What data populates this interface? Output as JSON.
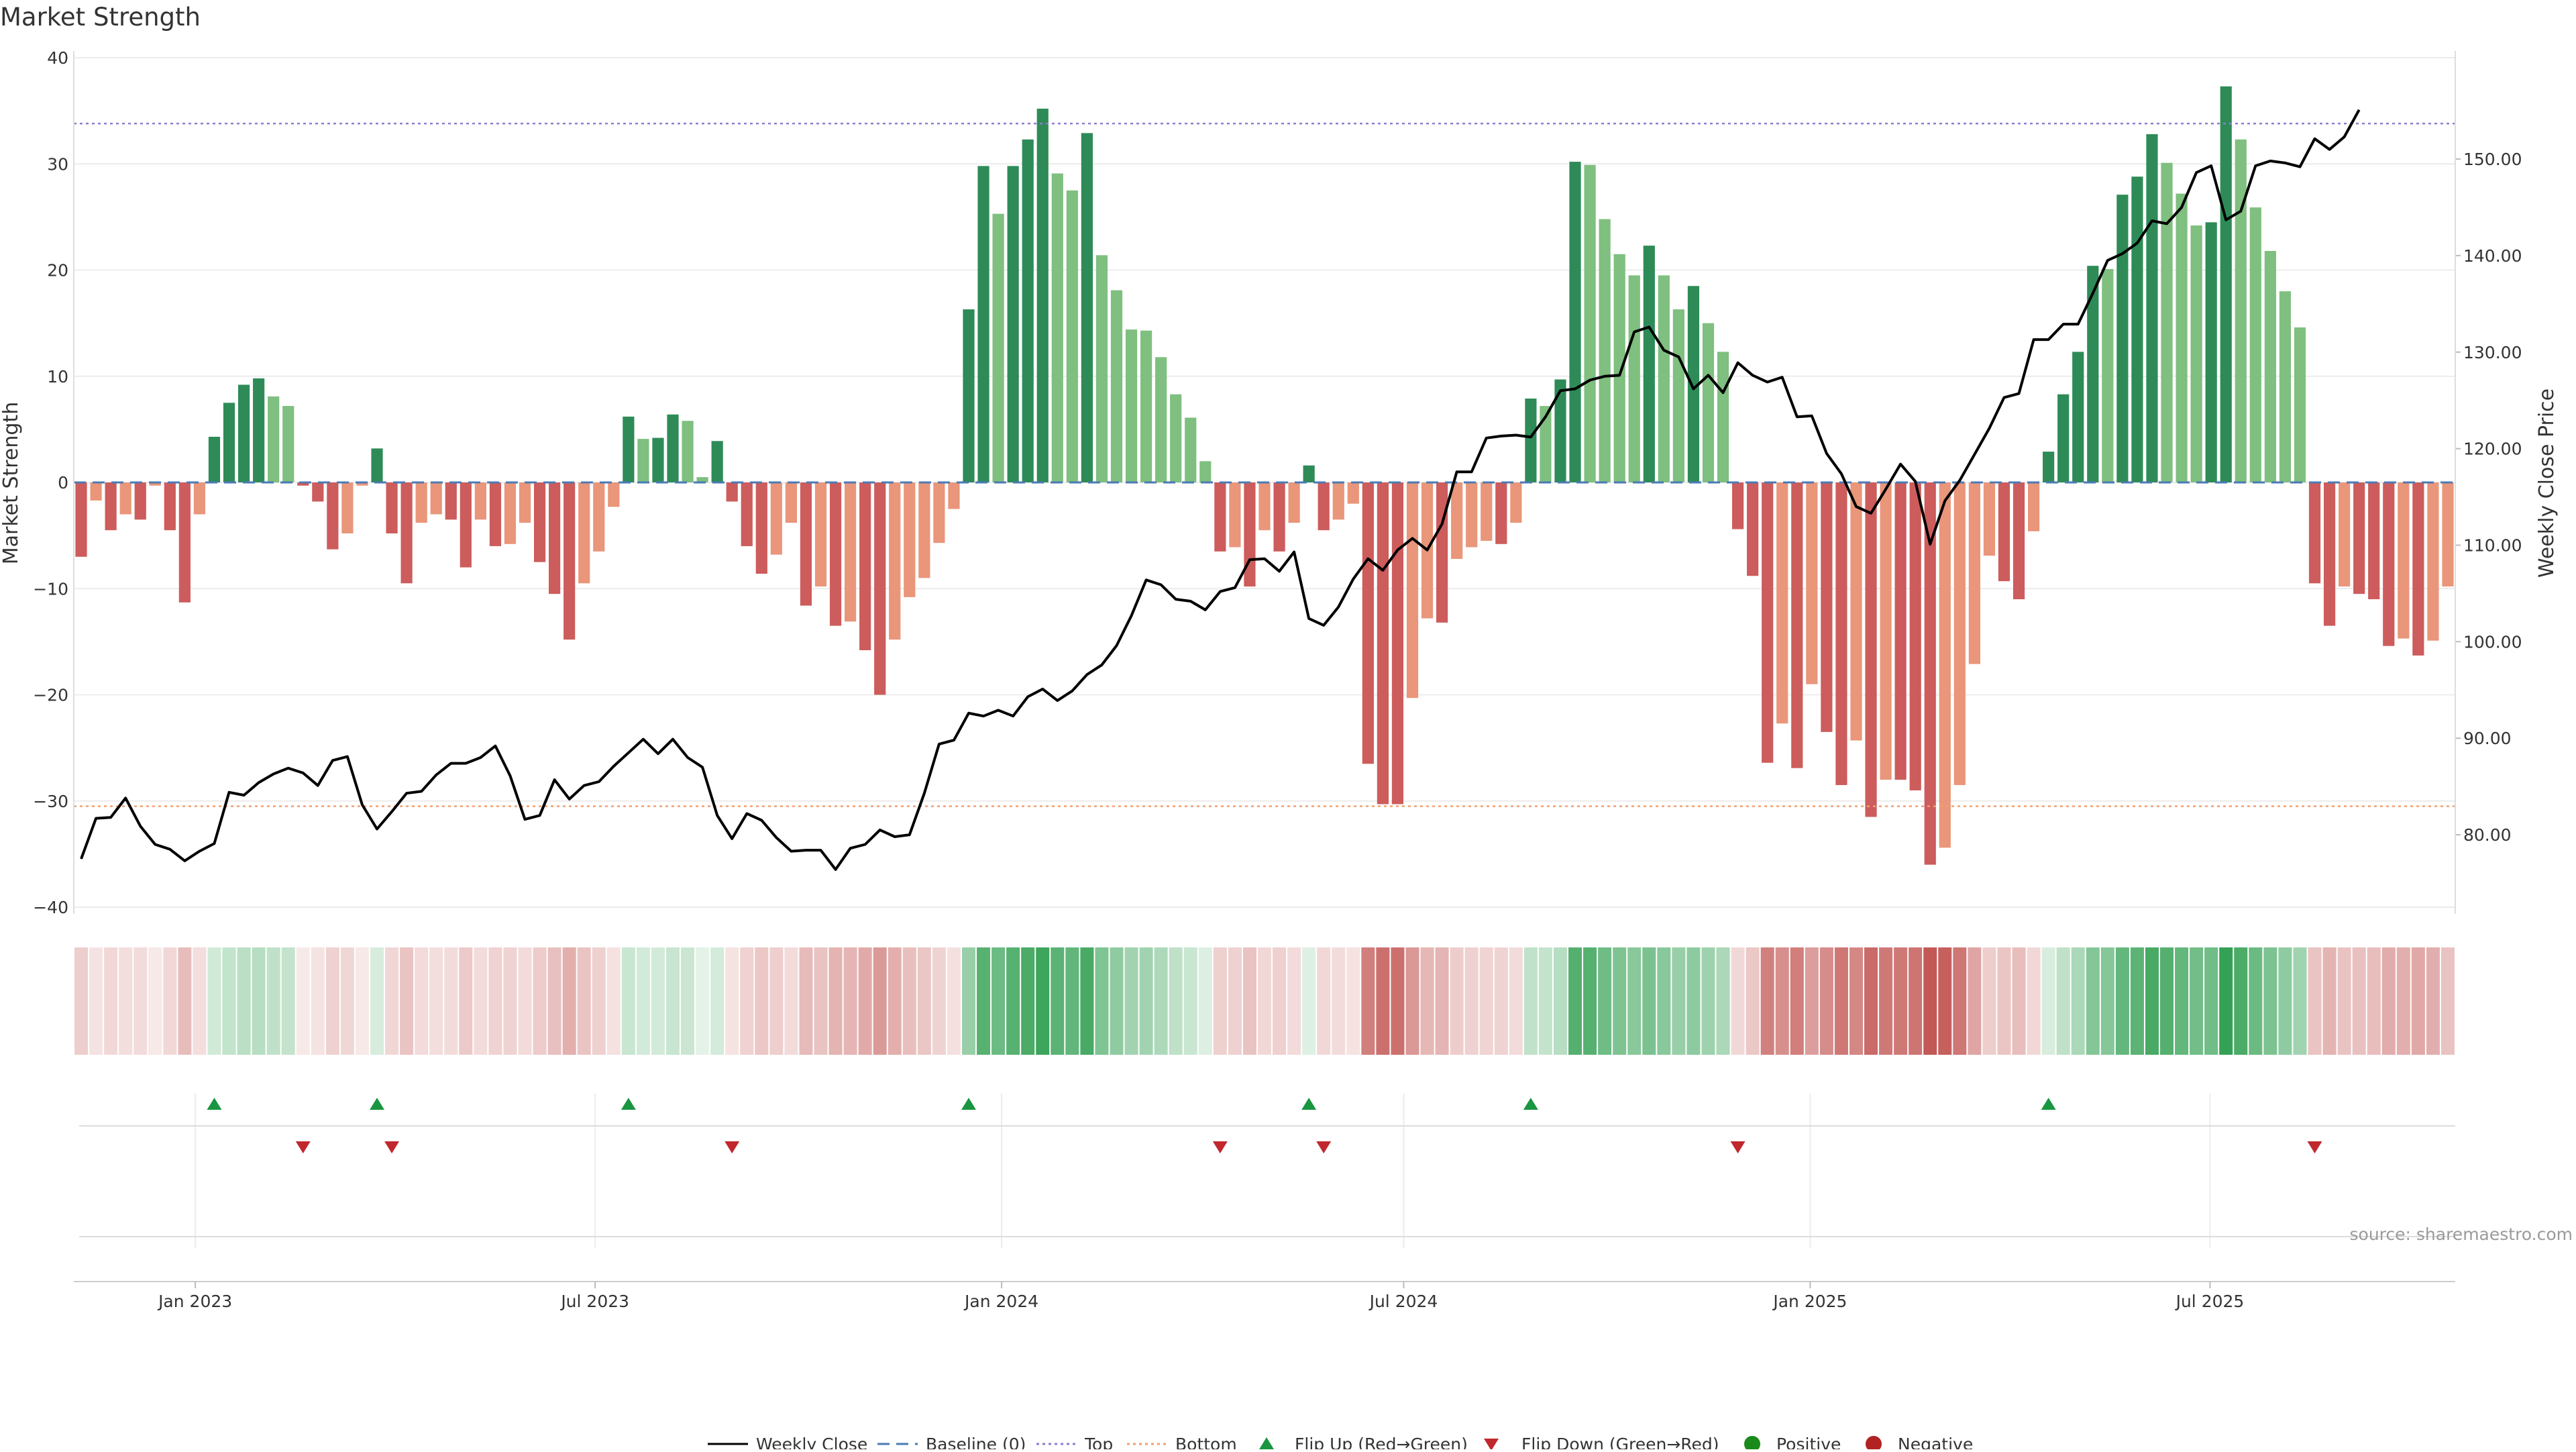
{
  "title": "Market Strength",
  "source": "source: sharemaestro.com",
  "chart_data": {
    "type": "bar",
    "title": "Market Strength",
    "ylabel_left": "Market Strength",
    "ylabel_right": "Weekly Close Price",
    "ylim_left": [
      -40,
      40
    ],
    "ylim_right": [
      72.5,
      160.5
    ],
    "left_ticks": [
      "40",
      "30",
      "20",
      "10",
      "0",
      "−10",
      "−20",
      "−30",
      "−40"
    ],
    "left_tick_values": [
      40,
      30,
      20,
      10,
      0,
      -10,
      -20,
      -30,
      -40
    ],
    "right_ticks": [
      "150.00",
      "140.00",
      "130.00",
      "120.00",
      "110.00",
      "100.00",
      "90.00",
      "80.00"
    ],
    "right_tick_values": [
      150,
      140,
      130,
      120,
      110,
      100,
      90,
      80
    ],
    "x_start": "2022-11-07",
    "x_end": "2025-10-20",
    "x_ticks": [
      "Jan 2023",
      "Jul 2023",
      "Jan 2024",
      "Jul 2024",
      "Jan 2025",
      "Jul 2025"
    ],
    "x_tick_dates": [
      "2023-01-01",
      "2023-07-01",
      "2024-01-01",
      "2024-07-01",
      "2025-01-01",
      "2025-07-01"
    ],
    "top_line": 33.8,
    "bottom_line": -30.5,
    "grid": true,
    "legend_position": "bottom-center",
    "colors": {
      "weekly_close": "#000000",
      "baseline": "#4a7ab5",
      "top": "#8a7fd0",
      "bottom": "#f0a070",
      "green_dark": "#2e8b57",
      "green_light": "#7fbf7f",
      "red_dark": "#cd5c5c",
      "red_light": "#e9967a",
      "flip_up": "#1a9641",
      "flip_down": "#c0282d",
      "positive": "#1a8a1a",
      "negative": "#b22222"
    },
    "strength": [
      -7,
      -1.7,
      -4.5,
      -3,
      -3.5,
      -0.3,
      -4.5,
      -11.3,
      -3,
      4.3,
      7.5,
      9.2,
      9.8,
      8.1,
      7.2,
      -0.3,
      -1.8,
      -6.3,
      -4.8,
      -0.3,
      3.2,
      -4.8,
      -9.5,
      -3.8,
      -3.0,
      -3.5,
      -8,
      -3.5,
      -6,
      -5.8,
      -3.8,
      -7.5,
      -10.5,
      -14.8,
      -9.5,
      -6.5,
      -2.3,
      6.2,
      4.1,
      4.2,
      6.4,
      5.8,
      0.5,
      3.9,
      -1.8,
      -6,
      -8.6,
      -6.8,
      -3.8,
      -11.6,
      -9.8,
      -13.5,
      -13.1,
      -15.8,
      -20,
      -14.8,
      -10.8,
      -9.0,
      -5.7,
      -2.5,
      16.3,
      29.8,
      25.3,
      29.8,
      32.3,
      35.2,
      29.1,
      27.5,
      32.9,
      21.4,
      18.1,
      14.4,
      14.3,
      11.8,
      8.3,
      6.1,
      2.0,
      -6.5,
      -6.1,
      -9.8,
      -4.5,
      -6.5,
      -3.8,
      1.6,
      -4.5,
      -3.5,
      -2.0,
      -26.5,
      -30.3,
      -30.3,
      -20.3,
      -12.8,
      -13.2,
      -7.2,
      -6.1,
      -5.5,
      -5.8,
      -3.8,
      7.9,
      7.2,
      9.7,
      30.2,
      29.9,
      24.8,
      21.5,
      19.5,
      22.3,
      19.5,
      16.3,
      18.5,
      15.0,
      12.3,
      -4.4,
      -8.8,
      -26.4,
      -22.7,
      -26.9,
      -19,
      -23.5,
      -28.5,
      -24.3,
      -31.5,
      -28.0,
      -28.0,
      -29,
      -36,
      -34.4,
      -28.5,
      -17.1,
      -6.9,
      -9.3,
      -11,
      -4.6,
      2.9,
      8.3,
      12.3,
      20.4,
      20.1,
      27.1,
      28.8,
      32.8,
      30.1,
      27.2,
      24.2,
      24.5,
      37.3,
      32.3,
      25.9,
      21.8,
      18,
      14.6,
      -9.5,
      -13.5,
      -9.8,
      -10.5,
      -11,
      -15.4,
      -14.7,
      -16.3,
      -14.9,
      -9.8
    ],
    "weekly_close": [
      77.5,
      81.7,
      81.8,
      83.8,
      80.9,
      79,
      78.5,
      77.3,
      78.3,
      79.1,
      84.4,
      84.1,
      85.4,
      86.3,
      86.9,
      86.4,
      85.1,
      87.7,
      88.1,
      83.1,
      80.6,
      82.4,
      84.3,
      84.5,
      86.2,
      87.4,
      87.4,
      88,
      89.2,
      86.1,
      81.6,
      82,
      85.7,
      83.7,
      85.1,
      85.5,
      87.1,
      88.5,
      89.9,
      88.4,
      89.9,
      88.0,
      87.0,
      82,
      79.6,
      82.2,
      81.5,
      79.7,
      78.3,
      78.4,
      78.4,
      76.4,
      78.6,
      79,
      80.5,
      79.8,
      80,
      84.3,
      89.4,
      89.8,
      92.6,
      92.3,
      92.9,
      92.3,
      94.3,
      95.1,
      93.9,
      94.9,
      96.6,
      97.6,
      99.6,
      102.7,
      106.4,
      105.9,
      104.4,
      104.2,
      103.3,
      105.2,
      105.6,
      108.5,
      108.6,
      107.3,
      109.3,
      102.4,
      101.7,
      103.6,
      106.5,
      108.6,
      107.4,
      109.5,
      110.7,
      109.5,
      112.2,
      117.6,
      117.6,
      121.1,
      121.3,
      121.4,
      121.2,
      123.3,
      126.0,
      126.2,
      127.1,
      127.5,
      127.6,
      132.1,
      132.6,
      130.2,
      129.5,
      126.2,
      127.6,
      125.8,
      128.9,
      127.6,
      126.9,
      127.4,
      123.3,
      123.4,
      119.5,
      117.4,
      114,
      113.3,
      115.8,
      118.4,
      116.6,
      110.1,
      114.6,
      116.7,
      119.4,
      122.1,
      125.3,
      125.7,
      131.3,
      131.3,
      132.9,
      132.9,
      136.1,
      139.5,
      140.2,
      141.3,
      143.6,
      143.3,
      145,
      148.6,
      149.3,
      143.7,
      144.6,
      149.3,
      149.8,
      149.6,
      149.2,
      152.1,
      151,
      152.3,
      155.1
    ]
  },
  "legend": {
    "weekly_close": "Weekly Close",
    "baseline": "Baseline (0)",
    "top": "Top",
    "bottom": "Bottom",
    "flip_up": "Flip Up (Red→Green)",
    "flip_down": "Flip Down (Green→Red)",
    "positive": "Positive",
    "negative": "Negative"
  }
}
